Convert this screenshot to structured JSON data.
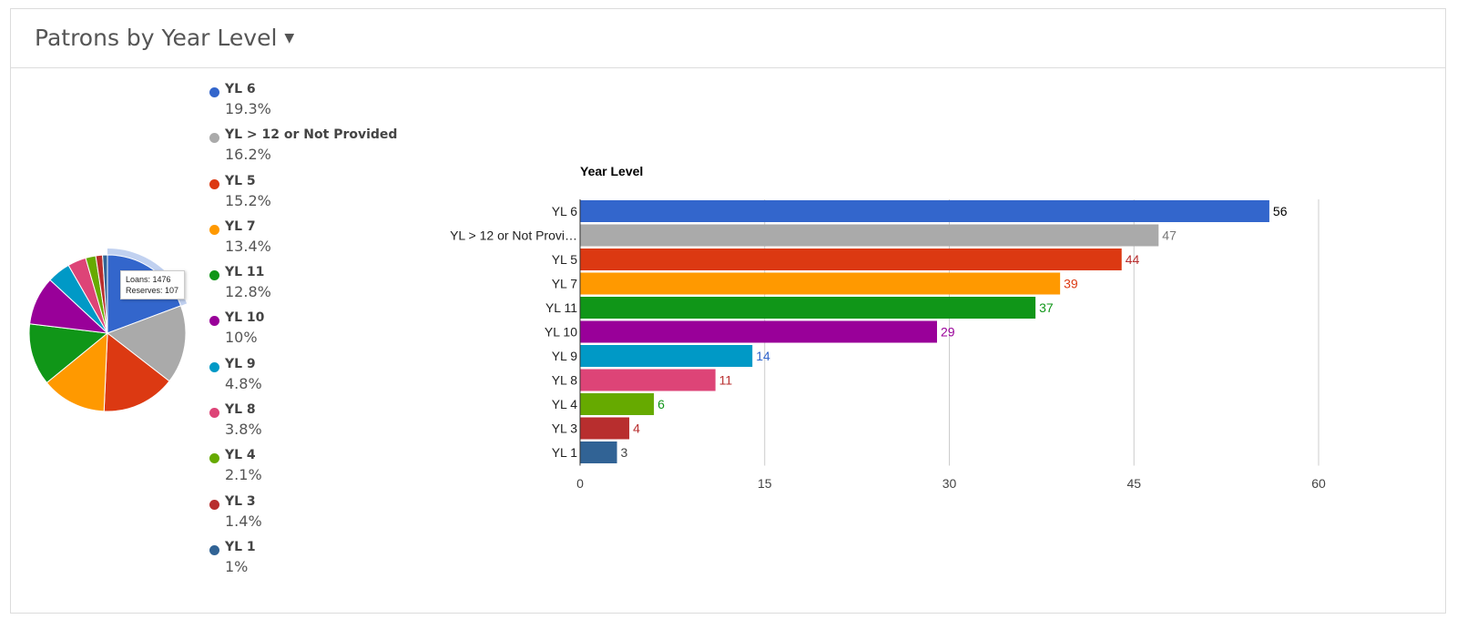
{
  "header": {
    "title": "Patrons by Year Level"
  },
  "tooltip": {
    "line1": "Loans: 1476",
    "line2": "Reserves: 107"
  },
  "chart_data": [
    {
      "type": "pie",
      "categories": [
        "YL 6",
        "YL > 12 or Not Provided",
        "YL 5",
        "YL 7",
        "YL 11",
        "YL 10",
        "YL 9",
        "YL 8",
        "YL 4",
        "YL 3",
        "YL 1"
      ],
      "values": [
        19.3,
        16.2,
        15.2,
        13.4,
        12.8,
        10,
        4.8,
        3.8,
        2.1,
        1.4,
        1
      ],
      "value_labels": [
        "19.3%",
        "16.2%",
        "15.2%",
        "13.4%",
        "12.8%",
        "10%",
        "4.8%",
        "3.8%",
        "2.1%",
        "1.4%",
        "1%"
      ],
      "colors": [
        "#3366cc",
        "#aaaaaa",
        "#dc3912",
        "#ff9900",
        "#109618",
        "#990099",
        "#0099c6",
        "#dd4477",
        "#66aa00",
        "#b82e2e",
        "#316395"
      ],
      "highlighted_slice": "YL 6",
      "legend": "right"
    },
    {
      "type": "bar",
      "orientation": "horizontal",
      "title": "Year Level",
      "categories": [
        "YL 6",
        "YL > 12 or Not Provi…",
        "YL 5",
        "YL 7",
        "YL 11",
        "YL 10",
        "YL 9",
        "YL 8",
        "YL 4",
        "YL 3",
        "YL 1"
      ],
      "values": [
        56,
        47,
        44,
        39,
        37,
        29,
        14,
        11,
        6,
        4,
        3
      ],
      "colors": [
        "#3366cc",
        "#aaaaaa",
        "#dc3912",
        "#ff9900",
        "#109618",
        "#990099",
        "#0099c6",
        "#dd4477",
        "#66aa00",
        "#b82e2e",
        "#316395"
      ],
      "label_colors": [
        "#000000",
        "#777777",
        "#b82e2e",
        "#dc3912",
        "#109618",
        "#990099",
        "#3366cc",
        "#b82e2e",
        "#109618",
        "#b82e2e",
        "#444444"
      ],
      "xlim": [
        0,
        60
      ],
      "xticks": [
        0,
        15,
        30,
        45,
        60
      ],
      "grid": true
    }
  ]
}
